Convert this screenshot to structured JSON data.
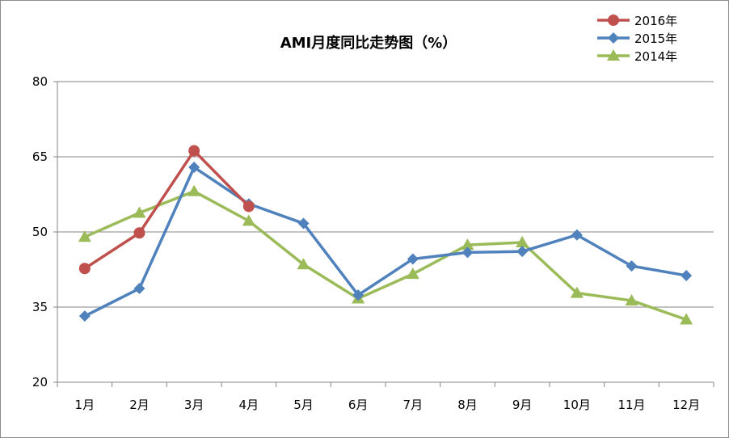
{
  "chart_data": {
    "type": "line",
    "title": "AMI月度同比走势图（%）",
    "xlabel": "",
    "ylabel": "",
    "categories": [
      "1月",
      "2月",
      "3月",
      "4月",
      "5月",
      "6月",
      "7月",
      "8月",
      "9月",
      "10月",
      "11月",
      "12月"
    ],
    "ylim": [
      20,
      80
    ],
    "yticks": [
      20,
      35,
      50,
      65,
      80
    ],
    "grid": true,
    "legend_position": "top-right",
    "series": [
      {
        "name": "2016年",
        "color": "#c0504d",
        "marker": "circle",
        "values": [
          42.7,
          49.8,
          66.2,
          55.1,
          null,
          null,
          null,
          null,
          null,
          null,
          null,
          null
        ]
      },
      {
        "name": "2015年",
        "color": "#4f81bd",
        "marker": "diamond",
        "values": [
          33.2,
          38.7,
          62.9,
          55.6,
          51.7,
          37.4,
          44.6,
          45.9,
          46.1,
          49.4,
          43.2,
          41.3
        ]
      },
      {
        "name": "2014年",
        "color": "#9bbb59",
        "marker": "triangle",
        "values": [
          49.0,
          53.8,
          58.1,
          52.2,
          43.5,
          36.7,
          41.6,
          47.4,
          47.9,
          37.8,
          36.3,
          32.5
        ]
      }
    ]
  }
}
